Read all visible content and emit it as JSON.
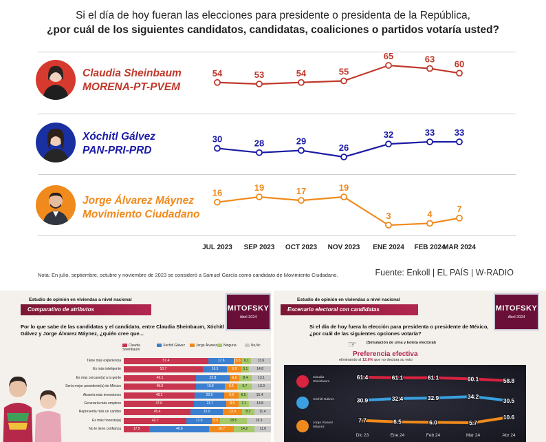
{
  "header": {
    "question_line1": "Si el día de hoy fueran las elecciones para presidente o presidenta de la República,",
    "question_line2": "¿por cuál de los siguientes candidatos, candidatas, coaliciones o partidos votaría usted?"
  },
  "candidates": [
    {
      "name": "Claudia Sheinbaum",
      "party": "MORENA-PT-PVEM",
      "color": "#c0392b"
    },
    {
      "name": "Xóchitl Gálvez",
      "party": "PAN-PRI-PRD",
      "color": "#1a1aa6"
    },
    {
      "name": "Jorge Álvarez Máynez",
      "party": "Movimiento Ciudadano",
      "color": "#f08a1c"
    }
  ],
  "chart_data": {
    "type": "line",
    "title": "Si el día de hoy fueran las elecciones para presidente o presidenta de la República, ¿por cuál de los siguientes candidatos, candidatas, coaliciones o partidos votaría usted?",
    "categories": [
      "JUL 2023",
      "SEP 2023",
      "OCT 2023",
      "NOV 2023",
      "ENE 2024",
      "FEB 2024",
      "MAR 2024"
    ],
    "series": [
      {
        "name": "Claudia Sheinbaum MORENA-PT-PVEM",
        "values": [
          54,
          53,
          54,
          55,
          65,
          63,
          60
        ],
        "color": "#c0392b"
      },
      {
        "name": "Xóchitl Gálvez PAN-PRI-PRD",
        "values": [
          30,
          28,
          29,
          26,
          32,
          33,
          33
        ],
        "color": "#1a1aa6"
      },
      {
        "name": "Jorge Álvarez Máynez Movimiento Ciudadano",
        "values": [
          16,
          19,
          17,
          19,
          3,
          4,
          7
        ],
        "color": "#f08a1c"
      }
    ],
    "xlabel": "",
    "ylabel": ""
  },
  "footer": {
    "note": "Nota: En julio, septiembre, octubre y noviembre de 2023 se consideró a Samuel García como candidato de Movimiento Ciudadano.",
    "source": "Fuente: Enkoll | EL PAÍS | W-RADIO"
  },
  "left_panel": {
    "study": "Estudio de opinión en viviendas a nivel nacional",
    "ribbon": "Comparativo de atributos",
    "logo": "MITOFSKY",
    "date": "Abril 2024",
    "question": "Por lo que sabe de las candidatas y el candidato, entre Claudia Sheinbaum, Xóchitl Gálvez y Jorge Álvarez Máynez, ¿quién cree que...",
    "legend": [
      "Claudia Sheinbaum",
      "Xóchitl Gálvez",
      "Jorge Álvarez",
      "Ninguna",
      "Ns,Nc"
    ],
    "legend_colors": [
      "#c8354f",
      "#3a7fd0",
      "#f08a1c",
      "#a6c96a",
      "#c8c8c8"
    ],
    "rows": [
      {
        "label": "Tiene más experiencia",
        "values": [
          "57.4",
          "17.6",
          "5.3",
          "6.1",
          "13.6"
        ],
        "pct": [
          57.4,
          17.6,
          5.3,
          6.1,
          13.6
        ]
      },
      {
        "label": "Es más inteligente",
        "values": [
          "53.7",
          "16.5",
          "9.9",
          "5.1",
          "14.8"
        ],
        "pct": [
          53.7,
          16.5,
          9.9,
          5.1,
          14.8
        ]
      },
      {
        "label": "Es más cercano(a) a la gente",
        "values": [
          "49.1",
          "22.8",
          "6.6",
          "8.4",
          "13.1"
        ],
        "pct": [
          49.1,
          22.8,
          6.6,
          8.4,
          13.1
        ]
      },
      {
        "label": "Sería mejor presidente(a) de México",
        "values": [
          "48.9",
          "19.8",
          "8.6",
          "9.7",
          "13.0"
        ],
        "pct": [
          48.9,
          19.8,
          8.6,
          9.7,
          13.0
        ]
      },
      {
        "label": "Atraería más inversiones",
        "values": [
          "48.2",
          "20.0",
          "9.9",
          "6.5",
          "15.4"
        ],
        "pct": [
          48.2,
          20.0,
          9.9,
          6.5,
          15.4
        ]
      },
      {
        "label": "Generaría más empleos",
        "values": [
          "47.6",
          "21.7",
          "8.5",
          "7.1",
          "14.8"
        ],
        "pct": [
          47.6,
          21.7,
          8.5,
          7.1,
          14.8
        ]
      },
      {
        "label": "Representa más un cambio",
        "values": [
          "45.4",
          "22.0",
          "13.0",
          "8.2",
          "11.4"
        ],
        "pct": [
          45.4,
          22.0,
          13.0,
          8.2,
          11.4
        ]
      },
      {
        "label": "Es más honesto(a)",
        "values": [
          "42.7",
          "17.0",
          "5.5",
          "18.5",
          "16.3"
        ],
        "pct": [
          42.7,
          17.0,
          5.5,
          18.5,
          16.3
        ]
      },
      {
        "label": "No le tiene confianza",
        "values": [
          "17.5",
          "40.6",
          "16.7",
          "14.2",
          "11.0"
        ],
        "pct": [
          17.5,
          40.6,
          16.7,
          14.2,
          11.0
        ]
      }
    ]
  },
  "right_panel": {
    "study": "Estudio de opinión en viviendas a nivel nacional",
    "ribbon": "Escenario electoral con candidatas",
    "logo": "MITOFSKY",
    "date": "Abril 2024",
    "question": "Si el día de hoy fuera la elección para presidenta o presidente de México, ¿por cuál de las siguientes opciones votaría?",
    "simulation": "(Simulación de urna y boleta electoral)",
    "title": "Preferencia efectiva",
    "subtitle_pre": "eliminando al",
    "subtitle_pct": "12.6%",
    "subtitle_post": "que no declara su voto",
    "periods": [
      "Dic 23",
      "Ene 24",
      "Feb 24",
      "Mar 24",
      "Abr 24"
    ],
    "candidates": [
      "Claudia Sheinbaum",
      "Xóchitl Gálvez",
      "Jorge Álvarez Máynez"
    ],
    "series": [
      {
        "values": [
          61.4,
          61.1,
          61.1,
          60.1,
          58.8
        ],
        "labels": [
          "61.4",
          "61.1",
          "61.1",
          "60.1",
          "58.8"
        ],
        "color": "#d9233f"
      },
      {
        "values": [
          30.9,
          32.4,
          32.9,
          34.2,
          30.5
        ],
        "labels": [
          "30.9",
          "32.4",
          "32.9",
          "34.2",
          "30.5"
        ],
        "color": "#3aa0e0"
      },
      {
        "values": [
          7.7,
          6.5,
          6.0,
          5.7,
          10.6
        ],
        "labels": [
          "7.7",
          "6.5",
          "6.0",
          "5.7",
          "10.6"
        ],
        "color": "#f08a1c"
      }
    ]
  }
}
